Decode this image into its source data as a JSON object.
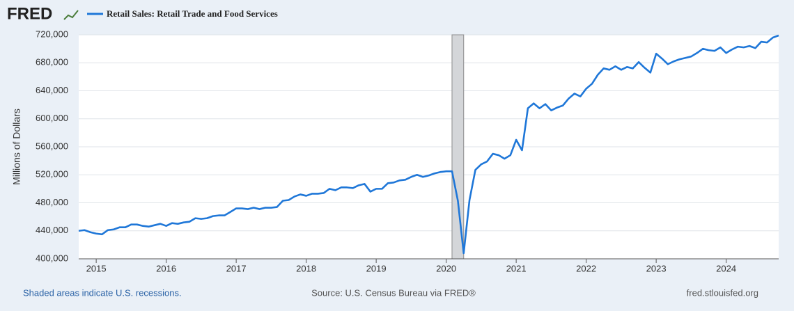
{
  "logo": "FRED",
  "chart_data": {
    "type": "line",
    "y_label": "Millions of Dollars",
    "x": [
      2014.75,
      2014.833,
      2014.917,
      2015,
      2015.083,
      2015.167,
      2015.25,
      2015.333,
      2015.417,
      2015.5,
      2015.583,
      2015.667,
      2015.75,
      2015.833,
      2015.917,
      2016,
      2016.083,
      2016.167,
      2016.25,
      2016.333,
      2016.417,
      2016.5,
      2016.583,
      2016.667,
      2016.75,
      2016.833,
      2016.917,
      2017,
      2017.083,
      2017.167,
      2017.25,
      2017.333,
      2017.417,
      2017.5,
      2017.583,
      2017.667,
      2017.75,
      2017.833,
      2017.917,
      2018,
      2018.083,
      2018.167,
      2018.25,
      2018.333,
      2018.417,
      2018.5,
      2018.583,
      2018.667,
      2018.75,
      2018.833,
      2018.917,
      2019,
      2019.083,
      2019.167,
      2019.25,
      2019.333,
      2019.417,
      2019.5,
      2019.583,
      2019.667,
      2019.75,
      2019.833,
      2019.917,
      2020,
      2020.083,
      2020.167,
      2020.25,
      2020.333,
      2020.417,
      2020.5,
      2020.583,
      2020.667,
      2020.75,
      2020.833,
      2020.917,
      2021,
      2021.083,
      2021.167,
      2021.25,
      2021.333,
      2021.417,
      2021.5,
      2021.583,
      2021.667,
      2021.75,
      2021.833,
      2021.917,
      2022,
      2022.083,
      2022.167,
      2022.25,
      2022.333,
      2022.417,
      2022.5,
      2022.583,
      2022.667,
      2022.75,
      2022.833,
      2022.917,
      2023,
      2023.083,
      2023.167,
      2023.25,
      2023.333,
      2023.417,
      2023.5,
      2023.583,
      2023.667,
      2023.75,
      2023.833,
      2023.917,
      2024,
      2024.083,
      2024.167,
      2024.25,
      2024.333,
      2024.417,
      2024.5,
      2024.583,
      2024.667,
      2024.75
    ],
    "series": [
      {
        "name": "Retail Sales: Retail Trade and Food Services",
        "color": "#1f77d8",
        "values": [
          440000,
          441000,
          438000,
          436000,
          435000,
          441000,
          442000,
          445000,
          445000,
          449000,
          449000,
          447000,
          446000,
          448000,
          450000,
          447000,
          451000,
          450000,
          452000,
          453000,
          458000,
          457000,
          458000,
          461000,
          462000,
          462000,
          467000,
          472000,
          472000,
          471000,
          473000,
          471000,
          473000,
          473000,
          474000,
          483000,
          484000,
          489000,
          492000,
          490000,
          493000,
          493000,
          494000,
          500000,
          498000,
          502000,
          502000,
          501000,
          505000,
          507000,
          496000,
          500000,
          500000,
          508000,
          509000,
          512000,
          513000,
          517000,
          520000,
          517000,
          519000,
          522000,
          524000,
          525000,
          525000,
          483000,
          408000,
          484000,
          527000,
          535000,
          539000,
          550000,
          548000,
          543000,
          548000,
          570000,
          555000,
          615000,
          622000,
          615000,
          621000,
          612000,
          616000,
          619000,
          629000,
          636000,
          632000,
          643000,
          650000,
          663000,
          672000,
          670000,
          675000,
          670000,
          674000,
          672000,
          681000,
          673000,
          666000,
          693000,
          686000,
          678000,
          682000,
          685000,
          687000,
          689000,
          694000,
          700000,
          698000,
          697000,
          702000,
          694000,
          699000,
          703000,
          702000,
          704000,
          701000,
          710000,
          709000,
          716000,
          719000
        ]
      }
    ],
    "recessions": [
      [
        2020.083,
        2020.25
      ]
    ],
    "xlim": [
      2014.75,
      2024.75
    ],
    "xticks": [
      2015,
      2016,
      2017,
      2018,
      2019,
      2020,
      2021,
      2022,
      2023,
      2024
    ],
    "ylim": [
      400000,
      720000
    ],
    "yticks": [
      {
        "value": 400000,
        "label": "400,000"
      },
      {
        "value": 440000,
        "label": "440,000"
      },
      {
        "value": 480000,
        "label": "480,000"
      },
      {
        "value": 520000,
        "label": "520,000"
      },
      {
        "value": 560000,
        "label": "560,000"
      },
      {
        "value": 600000,
        "label": "600,000"
      },
      {
        "value": 640000,
        "label": "640,000"
      },
      {
        "value": 680000,
        "label": "680,000"
      },
      {
        "value": 720000,
        "label": "720,000"
      }
    ],
    "grid": true
  },
  "footer": {
    "note": "Shaded areas indicate U.S. recessions.",
    "source": "Source: U.S. Census Bureau via FRED®",
    "site": "fred.stlouisfed.org"
  }
}
